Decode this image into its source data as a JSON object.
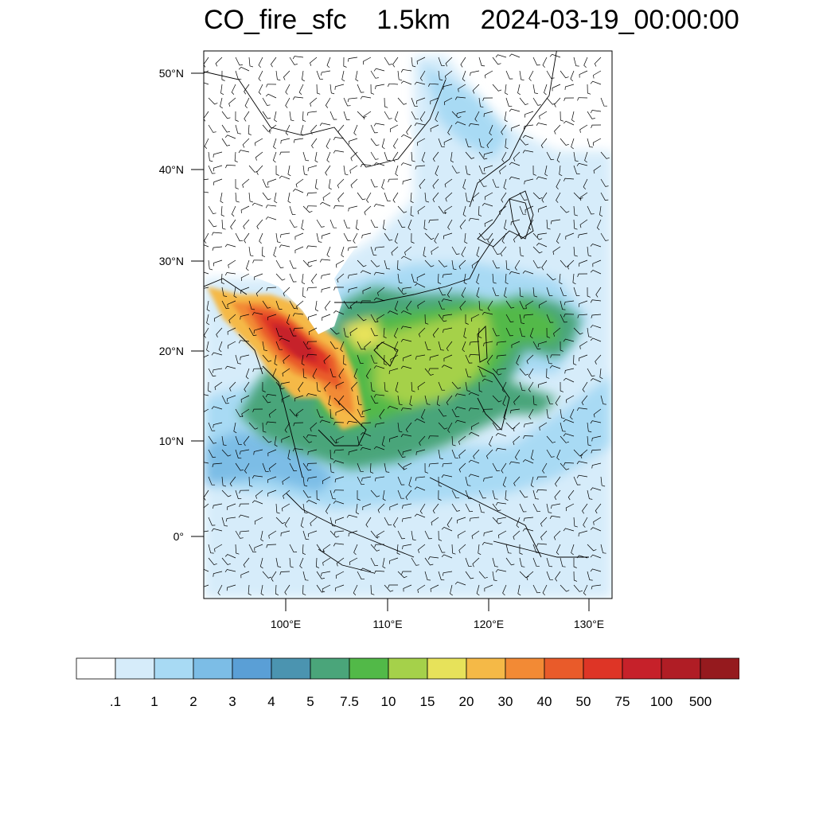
{
  "title": "CO_fire_sfc    1.5km    2024-03-19_00:00:00",
  "lat_labels": [
    "50°N",
    "40°N",
    "30°N",
    "20°N",
    "10°N",
    "0°"
  ],
  "lon_labels": [
    "100°E",
    "110°E",
    "120°E",
    "130°E"
  ],
  "colorbar": {
    "labels": [
      ".1",
      "1",
      "2",
      "3",
      "4",
      "5",
      "7.5",
      "10",
      "15",
      "20",
      "30",
      "40",
      "50",
      "75",
      "100",
      "500"
    ],
    "colors": [
      "#ffffff",
      "#d6ecfa",
      "#a8daf4",
      "#7cbde6",
      "#5a9fd6",
      "#4b94b0",
      "#4aa57a",
      "#52b948",
      "#a5d14a",
      "#e7e25a",
      "#f5b947",
      "#f28a35",
      "#e95b2a",
      "#de3526",
      "#c6212a",
      "#b01d25",
      "#951a1e"
    ]
  },
  "map": {
    "extent": {
      "lon_min": 92,
      "lon_max": 132.5,
      "lat_min": -6.5,
      "lat_max": 52.5
    }
  }
}
